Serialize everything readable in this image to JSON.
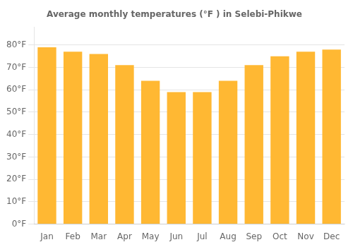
{
  "chart_data": {
    "type": "bar",
    "title": "Average monthly temperatures (°F ) in Selebi-Phikwe",
    "categories": [
      "Jan",
      "Feb",
      "Mar",
      "Apr",
      "May",
      "Jun",
      "Jul",
      "Aug",
      "Sep",
      "Oct",
      "Nov",
      "Dec"
    ],
    "values": [
      79,
      77,
      76,
      71,
      64,
      59,
      59,
      64,
      71,
      75,
      77,
      78
    ],
    "color": "#FFB833",
    "ylim": [
      0,
      88
    ],
    "yticks": [
      {
        "value": 0,
        "label": "0°F"
      },
      {
        "value": 10,
        "label": "10°F"
      },
      {
        "value": 20,
        "label": "20°F"
      },
      {
        "value": 30,
        "label": "30°F"
      },
      {
        "value": 40,
        "label": "40°F"
      },
      {
        "value": 50,
        "label": "50°F"
      },
      {
        "value": 60,
        "label": "60°F"
      },
      {
        "value": 70,
        "label": "70°F"
      },
      {
        "value": 80,
        "label": "80°F"
      }
    ],
    "grid": true
  }
}
